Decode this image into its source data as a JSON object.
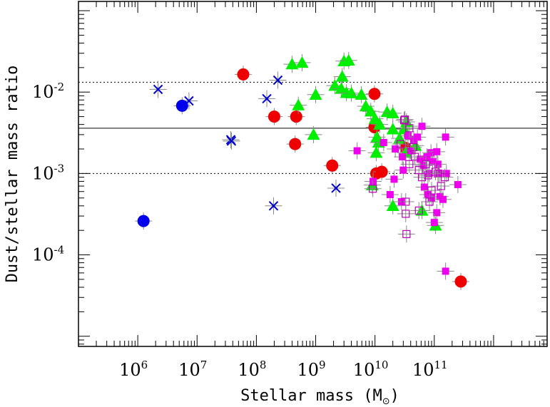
{
  "chart_data": {
    "type": "scatter",
    "xlabel": "Stellar mass (M",
    "xlabel_sub": "⊙",
    "xlabel_close": ")",
    "ylabel": "Dust/stellar mass ratio",
    "xscale": "log",
    "yscale": "log",
    "xlim": [
      100000,
      8000000000000
    ],
    "ylim": [
      7.5e-06,
      0.13
    ],
    "x_ticks": [
      {
        "base": "10",
        "exp": "6",
        "value": 1000000
      },
      {
        "base": "10",
        "exp": "7",
        "value": 10000000
      },
      {
        "base": "10",
        "exp": "8",
        "value": 100000000
      },
      {
        "base": "10",
        "exp": "9",
        "value": 1000000000
      },
      {
        "base": "10",
        "exp": "10",
        "value": 10000000000
      },
      {
        "base": "10",
        "exp": "11",
        "value": 100000000000
      }
    ],
    "y_ticks": [
      {
        "base": "10",
        "exp": "-2",
        "value": 0.01
      },
      {
        "base": "10",
        "exp": "-3",
        "value": 0.001
      },
      {
        "base": "10",
        "exp": "-4",
        "value": 0.0001
      }
    ],
    "reference_lines": [
      {
        "y": 0.0036,
        "style": "solid"
      },
      {
        "y": 0.0132,
        "style": "dotted"
      },
      {
        "y": 0.001,
        "style": "dotted"
      }
    ],
    "error_color": "#888888",
    "series": [
      {
        "name": "blue crosses",
        "marker": "x",
        "color": "#0000cc",
        "points": [
          [
            2200000,
            0.0108
          ],
          [
            7300000,
            0.0078
          ],
          [
            37000000,
            0.0026
          ],
          [
            38000000,
            0.0025
          ],
          [
            150000000,
            0.0083
          ],
          [
            230000000,
            0.014
          ],
          [
            195000000,
            0.0004
          ],
          [
            2200000000,
            0.00066
          ]
        ]
      },
      {
        "name": "blue circles",
        "marker": "circle",
        "color": "#0000ee",
        "points": [
          [
            5600000,
            0.0068
          ],
          [
            1250000,
            0.00026
          ]
        ]
      },
      {
        "name": "red circles",
        "marker": "circle",
        "color": "#ee0000",
        "points": [
          [
            60000000,
            0.0165
          ],
          [
            200000000,
            0.005
          ],
          [
            470000000,
            0.005
          ],
          [
            450000000,
            0.0023
          ],
          [
            1900000000,
            0.00125
          ],
          [
            9800000000,
            0.0095
          ],
          [
            9800000000,
            0.0037
          ],
          [
            10500000000,
            0.001
          ],
          [
            13000000000,
            0.00105
          ],
          [
            33000000000,
            0.00205
          ],
          [
            280000000000,
            4.7e-05
          ]
        ]
      },
      {
        "name": "green triangles",
        "marker": "triangle",
        "color": "#00ee00",
        "points": [
          [
            400000000,
            0.022
          ],
          [
            590000000,
            0.023
          ],
          [
            3000000000,
            0.024
          ],
          [
            3600000000,
            0.0245
          ],
          [
            2800000000,
            0.0155
          ],
          [
            2100000000,
            0.012
          ],
          [
            2700000000,
            0.011
          ],
          [
            1000000000,
            0.0093
          ],
          [
            3300000000,
            0.0098
          ],
          [
            4000000000,
            0.0097
          ],
          [
            5900000000,
            0.0093
          ],
          [
            7000000000,
            0.0067
          ],
          [
            8500000000,
            0.0058
          ],
          [
            10000000000,
            0.0047
          ],
          [
            12000000000,
            0.004
          ],
          [
            16000000000,
            0.0057
          ],
          [
            20000000000,
            0.0055
          ],
          [
            34000000000,
            0.0043
          ],
          [
            31000000000,
            0.0035
          ],
          [
            20000000000,
            0.0035
          ],
          [
            26000000000,
            0.0027
          ],
          [
            48000000000,
            0.0022
          ],
          [
            33000000000,
            0.0018
          ],
          [
            10800000000,
            0.0028
          ],
          [
            11500000000,
            0.0024
          ],
          [
            10500000000,
            0.0018
          ],
          [
            920000000,
            0.003
          ],
          [
            510000000,
            0.0069
          ],
          [
            9000000000,
            0.00072
          ],
          [
            20000000000,
            0.0004
          ],
          [
            62000000000,
            0.00035
          ],
          [
            105000000000,
            0.00023
          ]
        ]
      },
      {
        "name": "magenta filled squares",
        "marker": "square",
        "color": "#ee00ee",
        "points": [
          [
            5000000000,
            0.0019
          ],
          [
            9300000000,
            0.0008
          ],
          [
            14000000000,
            0.0024
          ],
          [
            22000000000,
            0.002
          ],
          [
            29000000000,
            0.0016
          ],
          [
            36000000000,
            0.0029
          ],
          [
            40000000000,
            0.0019
          ],
          [
            45000000000,
            0.0026
          ],
          [
            52000000000,
            0.0028
          ],
          [
            62000000000,
            0.0038
          ],
          [
            58000000000,
            0.0015
          ],
          [
            66000000000,
            0.00125
          ],
          [
            75000000000,
            0.0016
          ],
          [
            82000000000,
            0.001
          ],
          [
            88000000000,
            0.0018
          ],
          [
            94000000000,
            0.0014
          ],
          [
            110000000000,
            0.00185
          ],
          [
            115000000000,
            0.0013
          ],
          [
            120000000000,
            0.001
          ],
          [
            155000000000,
            0.0028
          ],
          [
            160000000000,
            0.001
          ],
          [
            250000000000,
            0.00073
          ],
          [
            30000000000,
            0.0011
          ],
          [
            21000000000,
            0.00085
          ],
          [
            18000000000,
            0.00055
          ],
          [
            28000000000,
            0.00045
          ],
          [
            68000000000,
            0.00068
          ],
          [
            78000000000,
            0.00055
          ],
          [
            90000000000,
            0.0005
          ],
          [
            110000000000,
            0.00033
          ],
          [
            125000000000,
            0.00052
          ],
          [
            140000000000,
            0.00048
          ],
          [
            100000000000,
            0.00025
          ],
          [
            155000000000,
            6.3e-05
          ]
        ]
      },
      {
        "name": "magenta open squares",
        "marker": "open-square",
        "color": "#bb00bb",
        "points": [
          [
            32000000000,
            0.0046
          ],
          [
            38000000000,
            0.0036
          ],
          [
            27000000000,
            0.0023
          ],
          [
            44000000000,
            0.0021
          ],
          [
            47000000000,
            0.0016
          ],
          [
            38000000000,
            0.0013
          ],
          [
            55000000000,
            0.0011
          ],
          [
            72000000000,
            0.0013
          ],
          [
            78000000000,
            0.00095
          ],
          [
            62000000000,
            0.0009
          ],
          [
            105000000000,
            0.00105
          ],
          [
            115000000000,
            0.001
          ],
          [
            90000000000,
            0.00062
          ],
          [
            83000000000,
            0.00045
          ],
          [
            55000000000,
            0.00035
          ],
          [
            33000000000,
            0.00045
          ],
          [
            33000000000,
            0.00032
          ],
          [
            34000000000,
            0.00018
          ],
          [
            31000000000,
            0.0045
          ],
          [
            9200000000,
            0.00065
          ],
          [
            130000000000,
            0.0007
          ],
          [
            150000000000,
            0.0009
          ]
        ]
      }
    ]
  }
}
